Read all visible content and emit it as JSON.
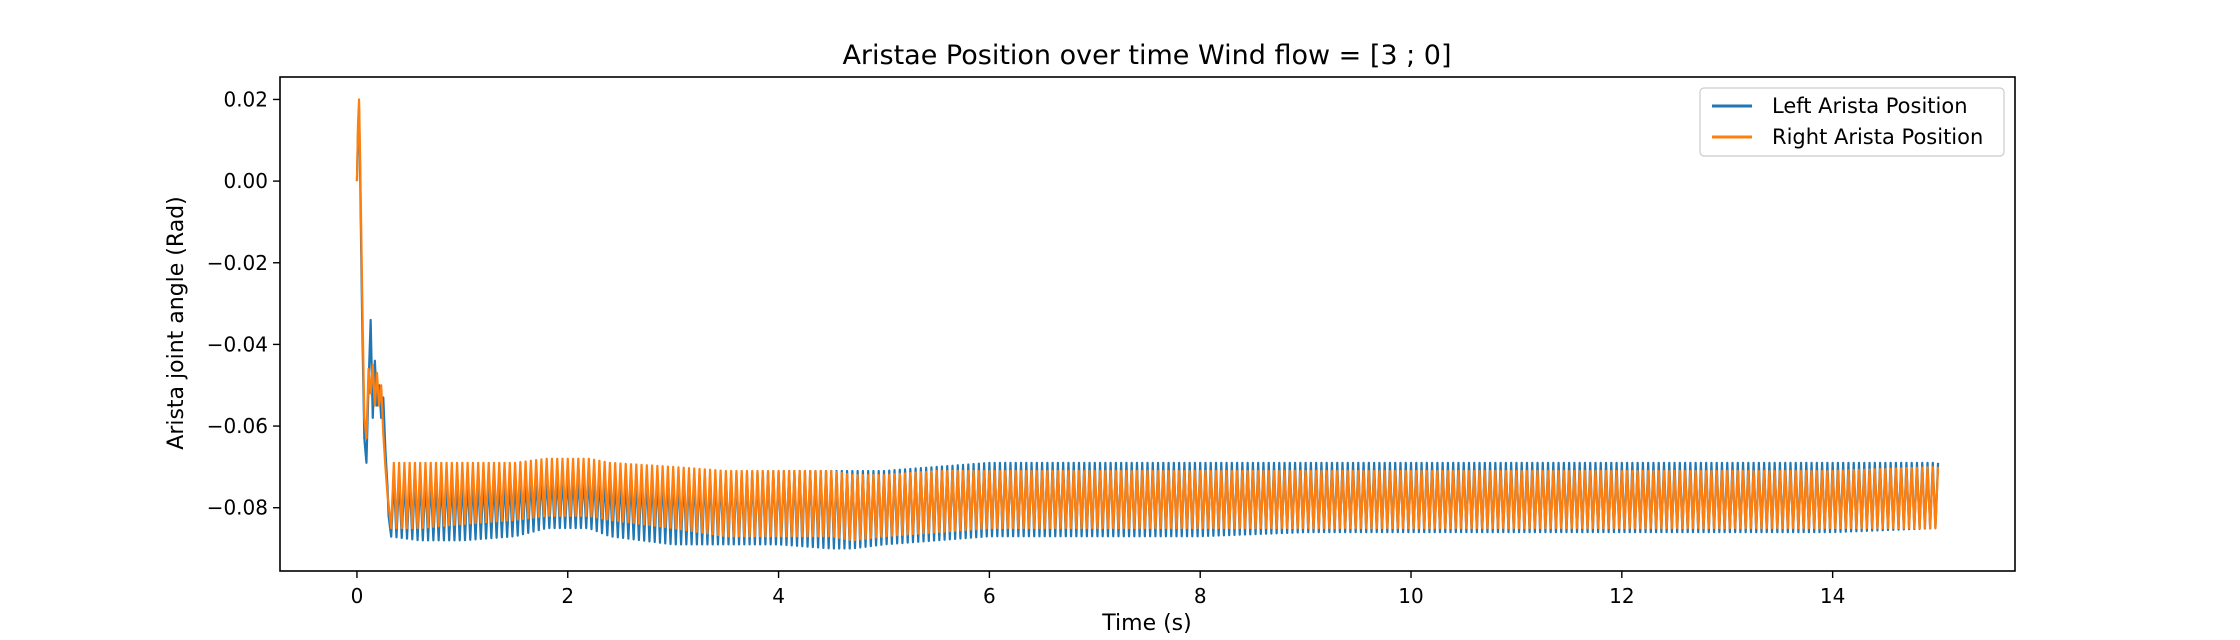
{
  "chart_data": {
    "type": "line",
    "title": "Aristae Position over time Wind flow = [3 ; 0]",
    "xlabel": "Time (s)",
    "ylabel": "Arista joint angle (Rad)",
    "xlim": [
      -0.73,
      15.73
    ],
    "ylim": [
      -0.0955,
      0.0255
    ],
    "xticks": [
      0,
      2,
      4,
      6,
      8,
      10,
      12,
      14
    ],
    "xtick_labels": [
      "0",
      "2",
      "4",
      "6",
      "8",
      "10",
      "12",
      "14"
    ],
    "yticks": [
      0.02,
      0.0,
      -0.02,
      -0.04,
      -0.06,
      -0.08
    ],
    "ytick_labels": [
      "0.02",
      "0.00",
      "−0.02",
      "−0.04",
      "−0.06",
      "−0.08"
    ],
    "grid": false,
    "legend_position": "top-right",
    "oscillation_period_s": 0.05,
    "series": [
      {
        "name": "Left Arista Position",
        "color": "#1f77b4",
        "transient": {
          "x": [
            0,
            0.01,
            0.02,
            0.03,
            0.05,
            0.07,
            0.09,
            0.11,
            0.13,
            0.15,
            0.17,
            0.19,
            0.21,
            0.23,
            0.25,
            0.27,
            0.29,
            0.3
          ],
          "y": [
            0.0,
            0.012,
            0.018,
            0.002,
            -0.035,
            -0.063,
            -0.069,
            -0.05,
            -0.034,
            -0.058,
            -0.044,
            -0.055,
            -0.05,
            -0.058,
            -0.053,
            -0.066,
            -0.075,
            -0.082
          ]
        },
        "envelope": {
          "t": [
            0.3,
            0.6,
            1.0,
            1.5,
            1.8,
            2.2,
            2.4,
            3.0,
            3.5,
            4.0,
            4.5,
            4.7,
            5.0,
            5.5,
            6.0,
            7.0,
            8.0,
            9.0,
            10.0,
            11.0,
            12.0,
            13.0,
            14.0,
            15.0
          ],
          "upper": [
            -0.073,
            -0.073,
            -0.073,
            -0.073,
            -0.072,
            -0.072,
            -0.073,
            -0.072,
            -0.072,
            -0.071,
            -0.071,
            -0.071,
            -0.071,
            -0.07,
            -0.069,
            -0.069,
            -0.069,
            -0.069,
            -0.069,
            -0.069,
            -0.069,
            -0.069,
            -0.069,
            -0.069
          ],
          "lower": [
            -0.087,
            -0.088,
            -0.088,
            -0.087,
            -0.085,
            -0.085,
            -0.087,
            -0.089,
            -0.089,
            -0.089,
            -0.09,
            -0.09,
            -0.089,
            -0.088,
            -0.087,
            -0.087,
            -0.087,
            -0.086,
            -0.086,
            -0.086,
            -0.086,
            -0.086,
            -0.086,
            -0.085
          ]
        }
      },
      {
        "name": "Right Arista Position",
        "color": "#ff7f0e",
        "transient": {
          "x": [
            0,
            0.01,
            0.02,
            0.03,
            0.05,
            0.07,
            0.09,
            0.11,
            0.13,
            0.15,
            0.17,
            0.19,
            0.21,
            0.23,
            0.25,
            0.27,
            0.29,
            0.3
          ],
          "y": [
            0.0,
            0.014,
            0.02,
            0.006,
            -0.028,
            -0.058,
            -0.063,
            -0.046,
            -0.052,
            -0.045,
            -0.055,
            -0.047,
            -0.055,
            -0.05,
            -0.062,
            -0.07,
            -0.077,
            -0.079
          ]
        },
        "envelope": {
          "t": [
            0.3,
            0.6,
            1.0,
            1.5,
            1.8,
            2.2,
            2.4,
            3.0,
            3.5,
            4.0,
            4.5,
            4.7,
            5.0,
            5.5,
            6.0,
            7.0,
            8.0,
            9.0,
            10.0,
            11.0,
            12.0,
            13.0,
            14.0,
            15.0
          ],
          "upper": [
            -0.069,
            -0.069,
            -0.069,
            -0.069,
            -0.068,
            -0.068,
            -0.069,
            -0.07,
            -0.071,
            -0.071,
            -0.071,
            -0.072,
            -0.072,
            -0.071,
            -0.071,
            -0.071,
            -0.071,
            -0.071,
            -0.071,
            -0.071,
            -0.071,
            -0.071,
            -0.071,
            -0.07
          ],
          "lower": [
            -0.085,
            -0.085,
            -0.084,
            -0.083,
            -0.082,
            -0.082,
            -0.083,
            -0.085,
            -0.087,
            -0.087,
            -0.087,
            -0.088,
            -0.087,
            -0.086,
            -0.085,
            -0.085,
            -0.085,
            -0.085,
            -0.085,
            -0.085,
            -0.085,
            -0.085,
            -0.085,
            -0.085
          ]
        }
      }
    ]
  }
}
